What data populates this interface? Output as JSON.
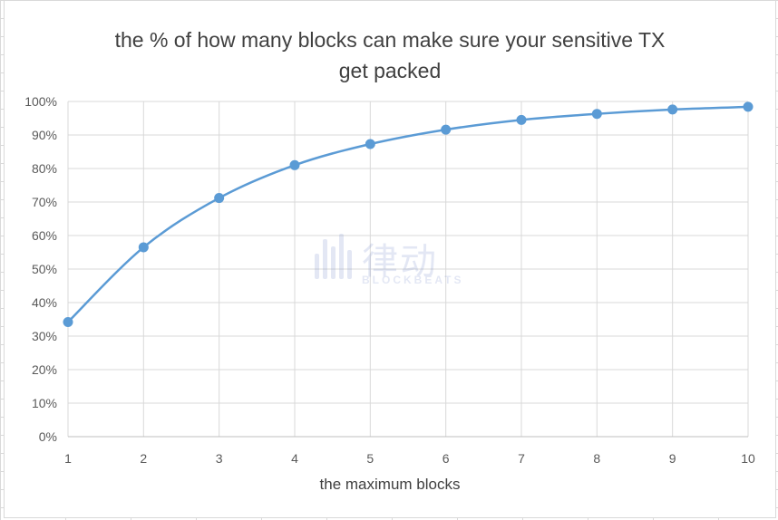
{
  "chart_data": {
    "type": "line",
    "title_line1": "the % of how many blocks can make sure your sensitive TX",
    "title_line2": "get packed",
    "xlabel": "the maximum blocks",
    "ylabel": "",
    "x": [
      1,
      2,
      3,
      4,
      5,
      6,
      7,
      8,
      9,
      10
    ],
    "series": [
      {
        "values": [
          34.2,
          56.5,
          71.2,
          81.0,
          87.3,
          91.6,
          94.5,
          96.3,
          97.6,
          98.4
        ]
      }
    ],
    "ylim": [
      0,
      100
    ],
    "yticks": [
      "0%",
      "10%",
      "20%",
      "30%",
      "40%",
      "50%",
      "60%",
      "70%",
      "80%",
      "90%",
      "100%"
    ],
    "xticks": [
      "1",
      "2",
      "3",
      "4",
      "5",
      "6",
      "7",
      "8",
      "9",
      "10"
    ],
    "grid": true,
    "smooth": true,
    "markers": true,
    "line_color": "#5b9bd5",
    "grid_color": "#d9d9d9"
  },
  "watermark": {
    "text_cn": "律动",
    "text_en": "BLOCKBEATS"
  }
}
